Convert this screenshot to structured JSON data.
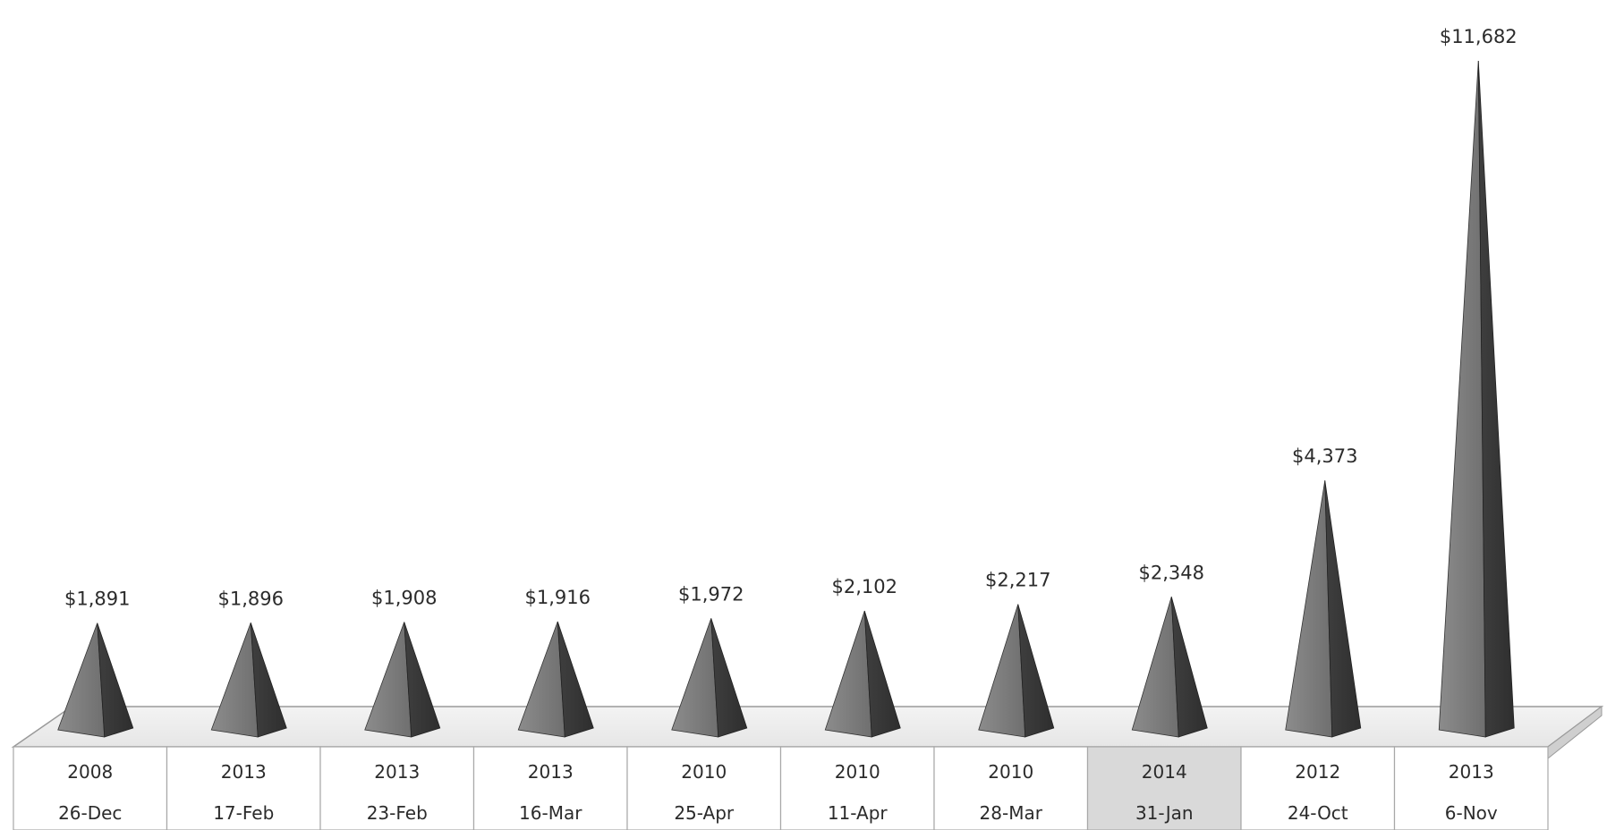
{
  "chart_data": {
    "type": "bar",
    "bar_shape": "pyramid",
    "view": "3d",
    "categories": [
      {
        "year": "2008",
        "date": "26-Dec"
      },
      {
        "year": "2013",
        "date": "17-Feb"
      },
      {
        "year": "2013",
        "date": "23-Feb"
      },
      {
        "year": "2013",
        "date": "16-Mar"
      },
      {
        "year": "2010",
        "date": "25-Apr"
      },
      {
        "year": "2010",
        "date": "11-Apr"
      },
      {
        "year": "2010",
        "date": "28-Mar"
      },
      {
        "year": "2014",
        "date": "31-Jan"
      },
      {
        "year": "2012",
        "date": "24-Oct"
      },
      {
        "year": "2013",
        "date": "6-Nov"
      }
    ],
    "values": [
      1891,
      1896,
      1908,
      1916,
      1972,
      2102,
      2217,
      2348,
      4373,
      11682
    ],
    "data_labels": [
      "$1,891",
      "$1,896",
      "$1,908",
      "$1,916",
      "$1,972",
      "$2,102",
      "$2,217",
      "$2,348",
      "$4,373",
      "$11,682"
    ],
    "highlighted_category_index": 7,
    "title": "",
    "xlabel": "",
    "ylabel": "",
    "grid": false,
    "legend": "none",
    "colors": {
      "pyramid_light": "#8c8c8c",
      "pyramid_mid": "#6f6f6f",
      "pyramid_dark": "#3f3f3f",
      "floor": "#e6e6e6",
      "floor_edge": "#9a9a9a",
      "table_border": "#a8a8a8",
      "highlight_cell": "#d9d9d9",
      "text": "#2b2b2b"
    }
  }
}
